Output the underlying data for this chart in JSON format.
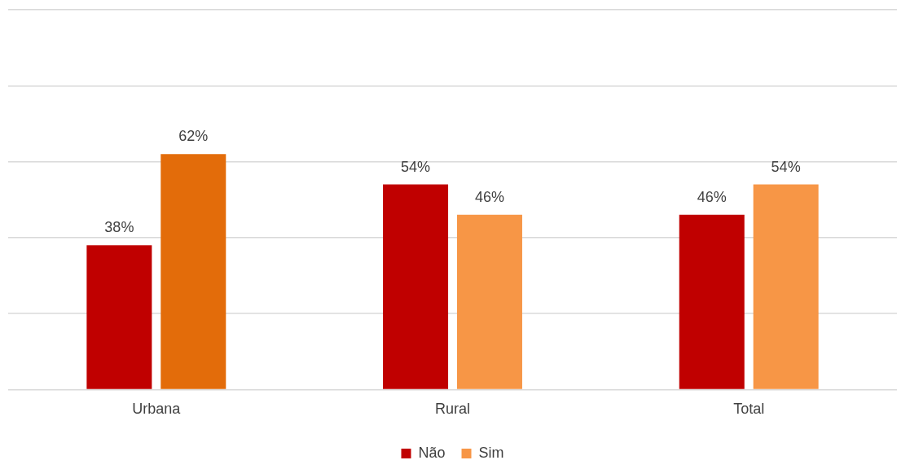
{
  "chart_data": {
    "type": "bar",
    "categories": [
      "Urbana",
      "Rural",
      "Total"
    ],
    "series": [
      {
        "name": "Não",
        "color": "#c00000",
        "values": [
          38,
          54,
          46
        ],
        "value_labels": [
          "38%",
          "54%",
          "46%"
        ]
      },
      {
        "name": "Sim",
        "color": "#f79646",
        "colors": [
          "#e36c0a",
          "#f79646",
          "#f79646"
        ],
        "values": [
          62,
          46,
          54
        ],
        "value_labels": [
          "62%",
          "46%",
          "54%"
        ]
      }
    ],
    "ylim": [
      0,
      100
    ],
    "yticks": [
      {
        "value": 0,
        "label": null
      },
      {
        "value": 20,
        "label": null
      },
      {
        "value": 40,
        "label": null
      },
      {
        "value": 60,
        "label": null
      },
      {
        "value": 80,
        "label": null
      },
      {
        "value": 100,
        "label": null
      }
    ],
    "grid": "y",
    "tick_labels": "x",
    "legend": "bottom"
  }
}
